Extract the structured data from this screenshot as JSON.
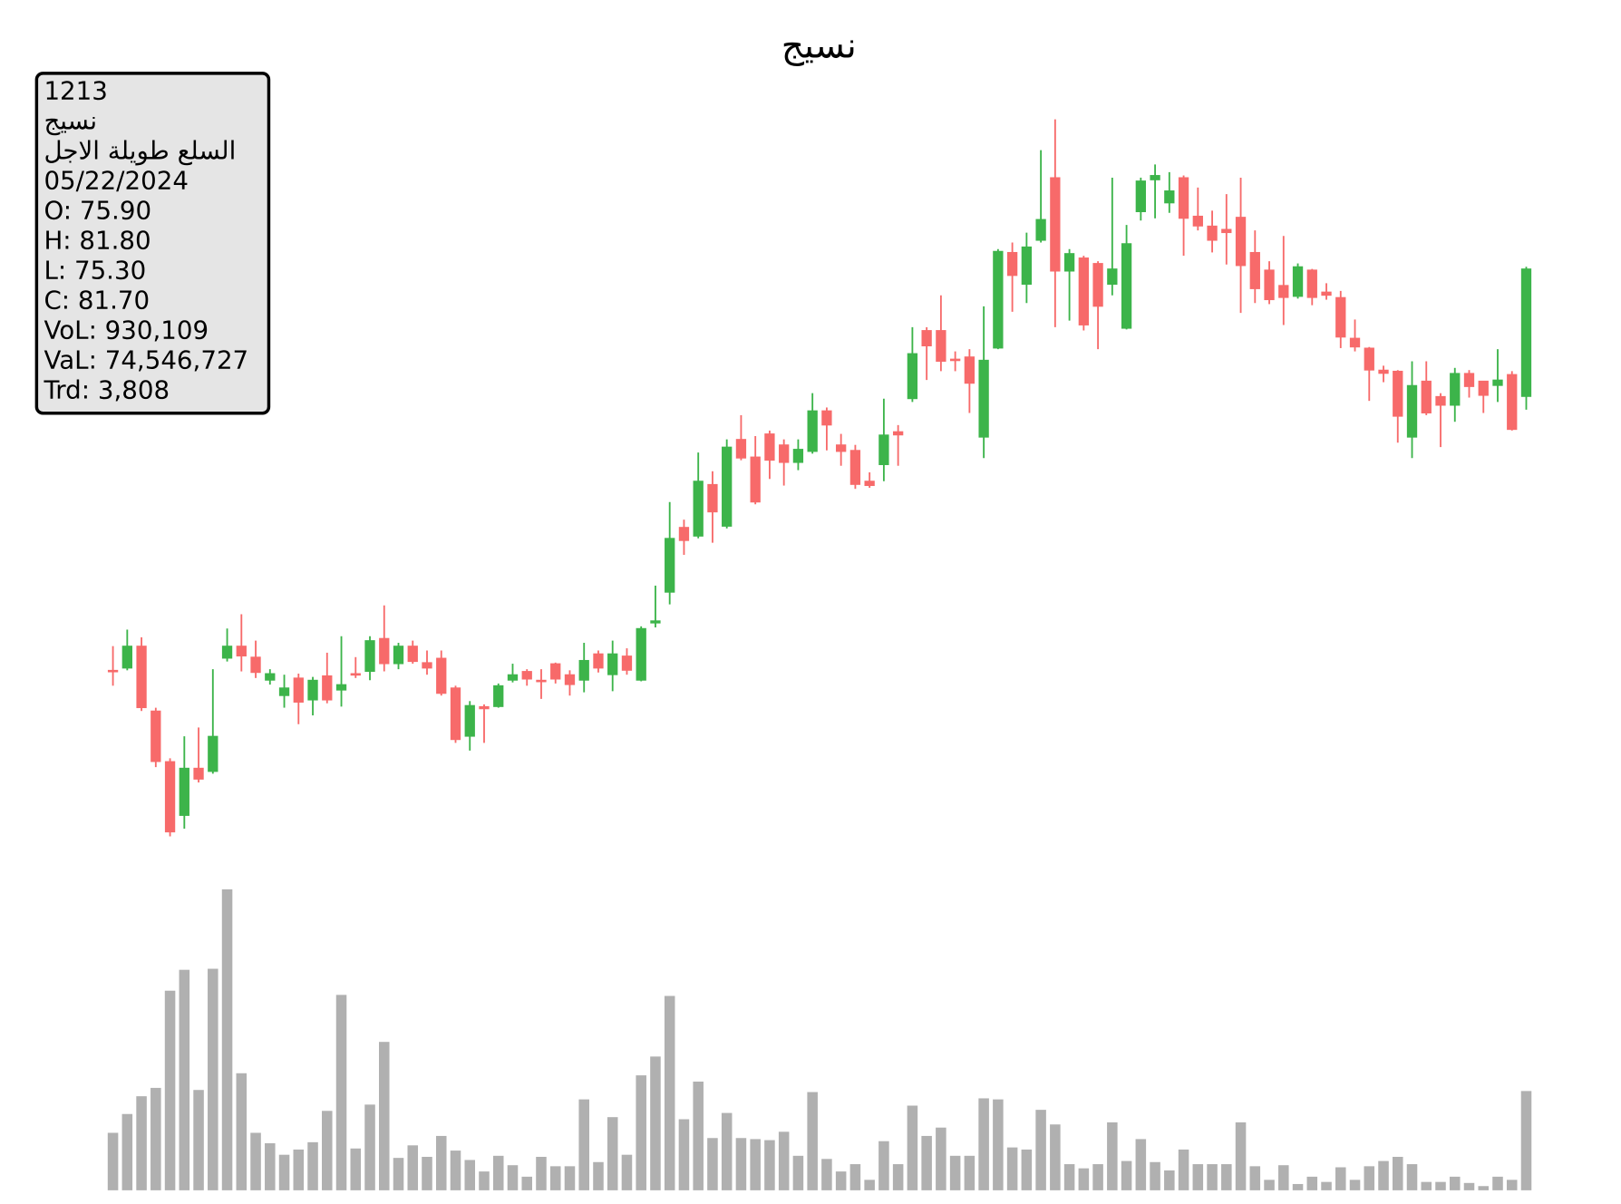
{
  "chart_data": {
    "type": "candlestick",
    "title": "نسيج",
    "info_box": {
      "lines": [
        "1213",
        "نسيج",
        "السلع طويلة الاجل",
        "05/22/2024",
        "O: 75.90",
        "H: 81.80",
        "L: 75.30",
        "C: 81.70",
        "VoL: 930,109",
        "VaL: 74,546,727",
        "Trd: 3,808"
      ]
    },
    "up_color": "#3cb44a",
    "down_color": "#f76a6a",
    "volume_color": "#b0b0b0",
    "ylim": [
      55.4,
      89.2
    ],
    "volume_ylim": [
      0,
      2920000
    ],
    "open": [
      63.45,
      63.55,
      64.55,
      61.6,
      59.3,
      56.85,
      59.0,
      58.85,
      64.0,
      64.55,
      64.05,
      63.0,
      62.3,
      63.1,
      62.1,
      63.2,
      62.55,
      63.3,
      63.4,
      64.9,
      63.75,
      64.55,
      63.8,
      64.0,
      62.65,
      60.45,
      61.8,
      61.8,
      63.0,
      63.4,
      63.0,
      63.75,
      63.25,
      63.0,
      64.2,
      63.25,
      64.1,
      63.0,
      65.6,
      67.0,
      69.95,
      69.55,
      71.9,
      70.0,
      73.95,
      73.15,
      74.2,
      73.7,
      72.9,
      73.4,
      75.25,
      73.7,
      73.45,
      72.05,
      72.8,
      74.3,
      75.8,
      78.9,
      78.9,
      77.6,
      77.7,
      74.05,
      78.1,
      82.45,
      81.0,
      83.0,
      85.85,
      81.6,
      82.2,
      81.95,
      81.0,
      79.0,
      84.3,
      85.75,
      84.7,
      85.85,
      84.1,
      83.65,
      83.5,
      84.05,
      82.45,
      81.65,
      80.95,
      80.45,
      81.65,
      80.65,
      80.4,
      78.55,
      78.1,
      77.1,
      77.05,
      74.05,
      76.6,
      75.9,
      75.5,
      76.95,
      76.6,
      76.4,
      76.9,
      75.9
    ],
    "high": [
      64.55,
      65.3,
      64.95,
      61.75,
      59.45,
      60.45,
      60.85,
      63.5,
      65.35,
      66.0,
      64.8,
      63.5,
      63.25,
      63.3,
      63.15,
      64.25,
      65.0,
      64.05,
      65.0,
      66.4,
      64.7,
      64.8,
      64.35,
      64.35,
      62.75,
      62.05,
      61.9,
      62.85,
      63.75,
      63.5,
      63.5,
      63.8,
      63.45,
      64.7,
      64.35,
      64.8,
      64.45,
      65.45,
      67.3,
      71.1,
      70.3,
      73.35,
      72.5,
      73.95,
      75.05,
      74.1,
      74.35,
      73.95,
      73.95,
      76.05,
      75.4,
      74.2,
      73.7,
      72.45,
      75.8,
      74.6,
      79.05,
      79.05,
      80.5,
      77.95,
      78.05,
      80.0,
      82.6,
      82.9,
      83.35,
      87.1,
      88.5,
      82.6,
      82.3,
      82.05,
      85.85,
      83.7,
      85.85,
      86.45,
      86.1,
      85.95,
      85.4,
      84.35,
      85.1,
      85.85,
      83.45,
      82.05,
      83.2,
      81.95,
      81.7,
      81.05,
      80.7,
      79.4,
      78.15,
      77.3,
      77.1,
      77.5,
      77.5,
      76.05,
      77.2,
      77.1,
      76.6,
      78.05,
      77.05,
      81.8
    ],
    "low": [
      62.75,
      63.45,
      61.6,
      59.05,
      55.9,
      56.25,
      58.35,
      58.75,
      63.85,
      63.4,
      63.1,
      62.8,
      61.75,
      61.0,
      61.4,
      61.95,
      61.8,
      63.1,
      63.0,
      63.4,
      63.5,
      63.75,
      63.25,
      62.3,
      60.15,
      59.8,
      60.15,
      61.75,
      62.9,
      62.75,
      62.15,
      62.85,
      62.3,
      62.45,
      63.35,
      62.5,
      63.25,
      62.95,
      65.4,
      66.45,
      68.7,
      69.45,
      69.25,
      69.9,
      73.0,
      71.0,
      72.15,
      71.85,
      72.55,
      73.3,
      73.45,
      72.75,
      71.7,
      71.75,
      72.05,
      72.75,
      75.65,
      76.65,
      77.05,
      77.05,
      75.15,
      73.1,
      78.05,
      79.75,
      80.15,
      82.9,
      79.05,
      79.35,
      78.9,
      78.05,
      80.5,
      78.95,
      83.9,
      84.0,
      84.25,
      82.3,
      83.45,
      82.45,
      81.9,
      79.7,
      80.15,
      80.1,
      79.15,
      80.35,
      80.05,
      80.3,
      78.1,
      77.95,
      75.7,
      76.55,
      73.8,
      73.1,
      75.05,
      73.6,
      74.75,
      75.85,
      75.15,
      75.65,
      74.35,
      75.3
    ],
    "close": [
      63.4,
      64.55,
      61.75,
      59.3,
      56.1,
      59.0,
      58.5,
      60.45,
      64.55,
      64.1,
      63.35,
      63.3,
      62.65,
      62.0,
      63.0,
      62.1,
      62.8,
      63.25,
      64.8,
      63.75,
      64.55,
      63.85,
      63.55,
      62.4,
      60.3,
      61.85,
      61.7,
      62.75,
      63.25,
      63.05,
      62.95,
      63.05,
      62.8,
      63.9,
      63.55,
      64.2,
      63.45,
      65.35,
      65.7,
      69.45,
      69.35,
      72.05,
      70.65,
      73.6,
      73.1,
      71.1,
      73.0,
      72.9,
      73.5,
      75.25,
      74.6,
      73.4,
      71.9,
      71.85,
      74.15,
      74.15,
      77.85,
      78.2,
      77.5,
      77.55,
      76.5,
      77.55,
      82.5,
      81.4,
      82.7,
      83.95,
      81.6,
      82.4,
      79.15,
      80.0,
      81.7,
      82.85,
      85.7,
      85.95,
      85.25,
      84.0,
      83.65,
      83.0,
      83.35,
      81.85,
      80.8,
      80.3,
      80.4,
      81.8,
      80.4,
      80.5,
      78.6,
      78.15,
      77.1,
      76.95,
      75.0,
      76.4,
      75.15,
      75.5,
      76.95,
      76.35,
      75.95,
      76.65,
      74.4,
      81.7
    ],
    "volume": [
      538500,
      714700,
      881100,
      959400,
      1869900,
      2065700,
      939800,
      2075500,
      2819500,
      1096500,
      538500,
      440600,
      332900,
      381800,
      450300,
      744000,
      1830700,
      391600,
      802800,
      1390200,
      303500,
      421000,
      313300,
      509100,
      372000,
      283900,
      176200,
      323100,
      235000,
      127300,
      313300,
      225200,
      225200,
      851700,
      264300,
      685300,
      332900,
      1076900,
      1253100,
      1820900,
      665700,
      1018200,
      489500,
      724500,
      489500,
      479700,
      469900,
      548200,
      323100,
      920300,
      293700,
      176200,
      244800,
      97900,
      460100,
      244800,
      793000,
      509100,
      587400,
      323100,
      323100,
      861500,
      851700,
      401400,
      381800,
      753800,
      616800,
      244800,
      205600,
      244800,
      636400,
      274100,
      479700,
      264300,
      186000,
      381800,
      244800,
      244800,
      244800,
      636400,
      225200,
      97900,
      235000,
      58700,
      127300,
      78300,
      215400,
      97900,
      225200,
      274100,
      313300,
      244800,
      78300,
      78300,
      127300,
      68500,
      39200,
      127300,
      97900,
      930109
    ]
  }
}
